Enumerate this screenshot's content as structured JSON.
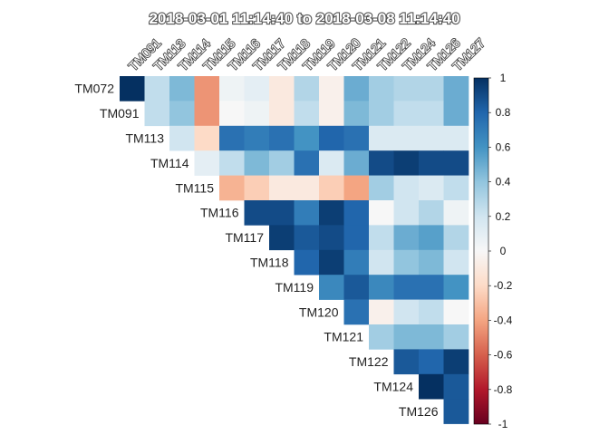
{
  "chart_data": {
    "type": "heatmap",
    "title": "2018-03-01 11:14:40  to  2018-03-08 11:14:40",
    "row_labels": [
      "TM072",
      "TM091",
      "TM113",
      "TM114",
      "TM115",
      "TM116",
      "TM117",
      "TM118",
      "TM119",
      "TM120",
      "TM121",
      "TM122",
      "TM124",
      "TM126"
    ],
    "col_labels": [
      "TM091",
      "TM113",
      "TM114",
      "TM115",
      "TM116",
      "TM117",
      "TM118",
      "TM119",
      "TM120",
      "TM121",
      "TM122",
      "TM124",
      "TM126",
      "TM127"
    ],
    "matrix": [
      [
        1.0,
        0.25,
        0.45,
        -0.45,
        0.05,
        0.1,
        -0.1,
        0.3,
        -0.05,
        0.5,
        0.35,
        0.3,
        0.3,
        0.5
      ],
      [
        null,
        0.25,
        0.4,
        -0.45,
        0.0,
        0.05,
        -0.1,
        0.25,
        -0.05,
        0.45,
        0.35,
        0.25,
        0.25,
        0.5
      ],
      [
        null,
        null,
        0.2,
        -0.2,
        0.75,
        0.7,
        0.75,
        0.6,
        0.8,
        0.75,
        0.15,
        0.15,
        0.15,
        0.15
      ],
      [
        null,
        null,
        null,
        0.1,
        0.25,
        0.45,
        0.35,
        0.75,
        0.15,
        0.5,
        0.9,
        0.95,
        0.9,
        0.9
      ],
      [
        null,
        null,
        null,
        null,
        -0.35,
        -0.25,
        -0.1,
        -0.1,
        -0.25,
        -0.4,
        0.35,
        0.2,
        0.15,
        0.25
      ],
      [
        null,
        null,
        null,
        null,
        null,
        0.9,
        0.9,
        0.7,
        0.95,
        0.8,
        0.0,
        0.2,
        0.3,
        0.05
      ],
      [
        null,
        null,
        null,
        null,
        null,
        null,
        0.95,
        0.85,
        0.9,
        0.8,
        0.25,
        0.5,
        0.55,
        0.3
      ],
      [
        null,
        null,
        null,
        null,
        null,
        null,
        null,
        0.8,
        0.95,
        0.7,
        0.2,
        0.4,
        0.45,
        0.2
      ],
      [
        null,
        null,
        null,
        null,
        null,
        null,
        null,
        null,
        0.65,
        0.85,
        0.65,
        0.75,
        0.75,
        0.6
      ],
      [
        null,
        null,
        null,
        null,
        null,
        null,
        null,
        null,
        null,
        0.75,
        -0.05,
        0.2,
        0.25,
        0.0
      ],
      [
        null,
        null,
        null,
        null,
        null,
        null,
        null,
        null,
        null,
        null,
        0.35,
        0.45,
        0.45,
        0.35
      ],
      [
        null,
        null,
        null,
        null,
        null,
        null,
        null,
        null,
        null,
        null,
        null,
        0.85,
        0.8,
        0.95
      ],
      [
        null,
        null,
        null,
        null,
        null,
        null,
        null,
        null,
        null,
        null,
        null,
        null,
        1.0,
        0.85
      ],
      [
        null,
        null,
        null,
        null,
        null,
        null,
        null,
        null,
        null,
        null,
        null,
        null,
        null,
        0.85
      ]
    ],
    "color_scale": {
      "min": -1,
      "max": 1,
      "low_color": "#67001f",
      "mid_color": "#f7f7f7",
      "high_color": "#053061",
      "ticks": [
        "1",
        "0.8",
        "0.6",
        "0.4",
        "0.2",
        "0",
        "-0.2",
        "-0.4",
        "-0.6",
        "-0.8",
        "-1"
      ]
    },
    "ylim": [
      -1,
      1
    ]
  }
}
